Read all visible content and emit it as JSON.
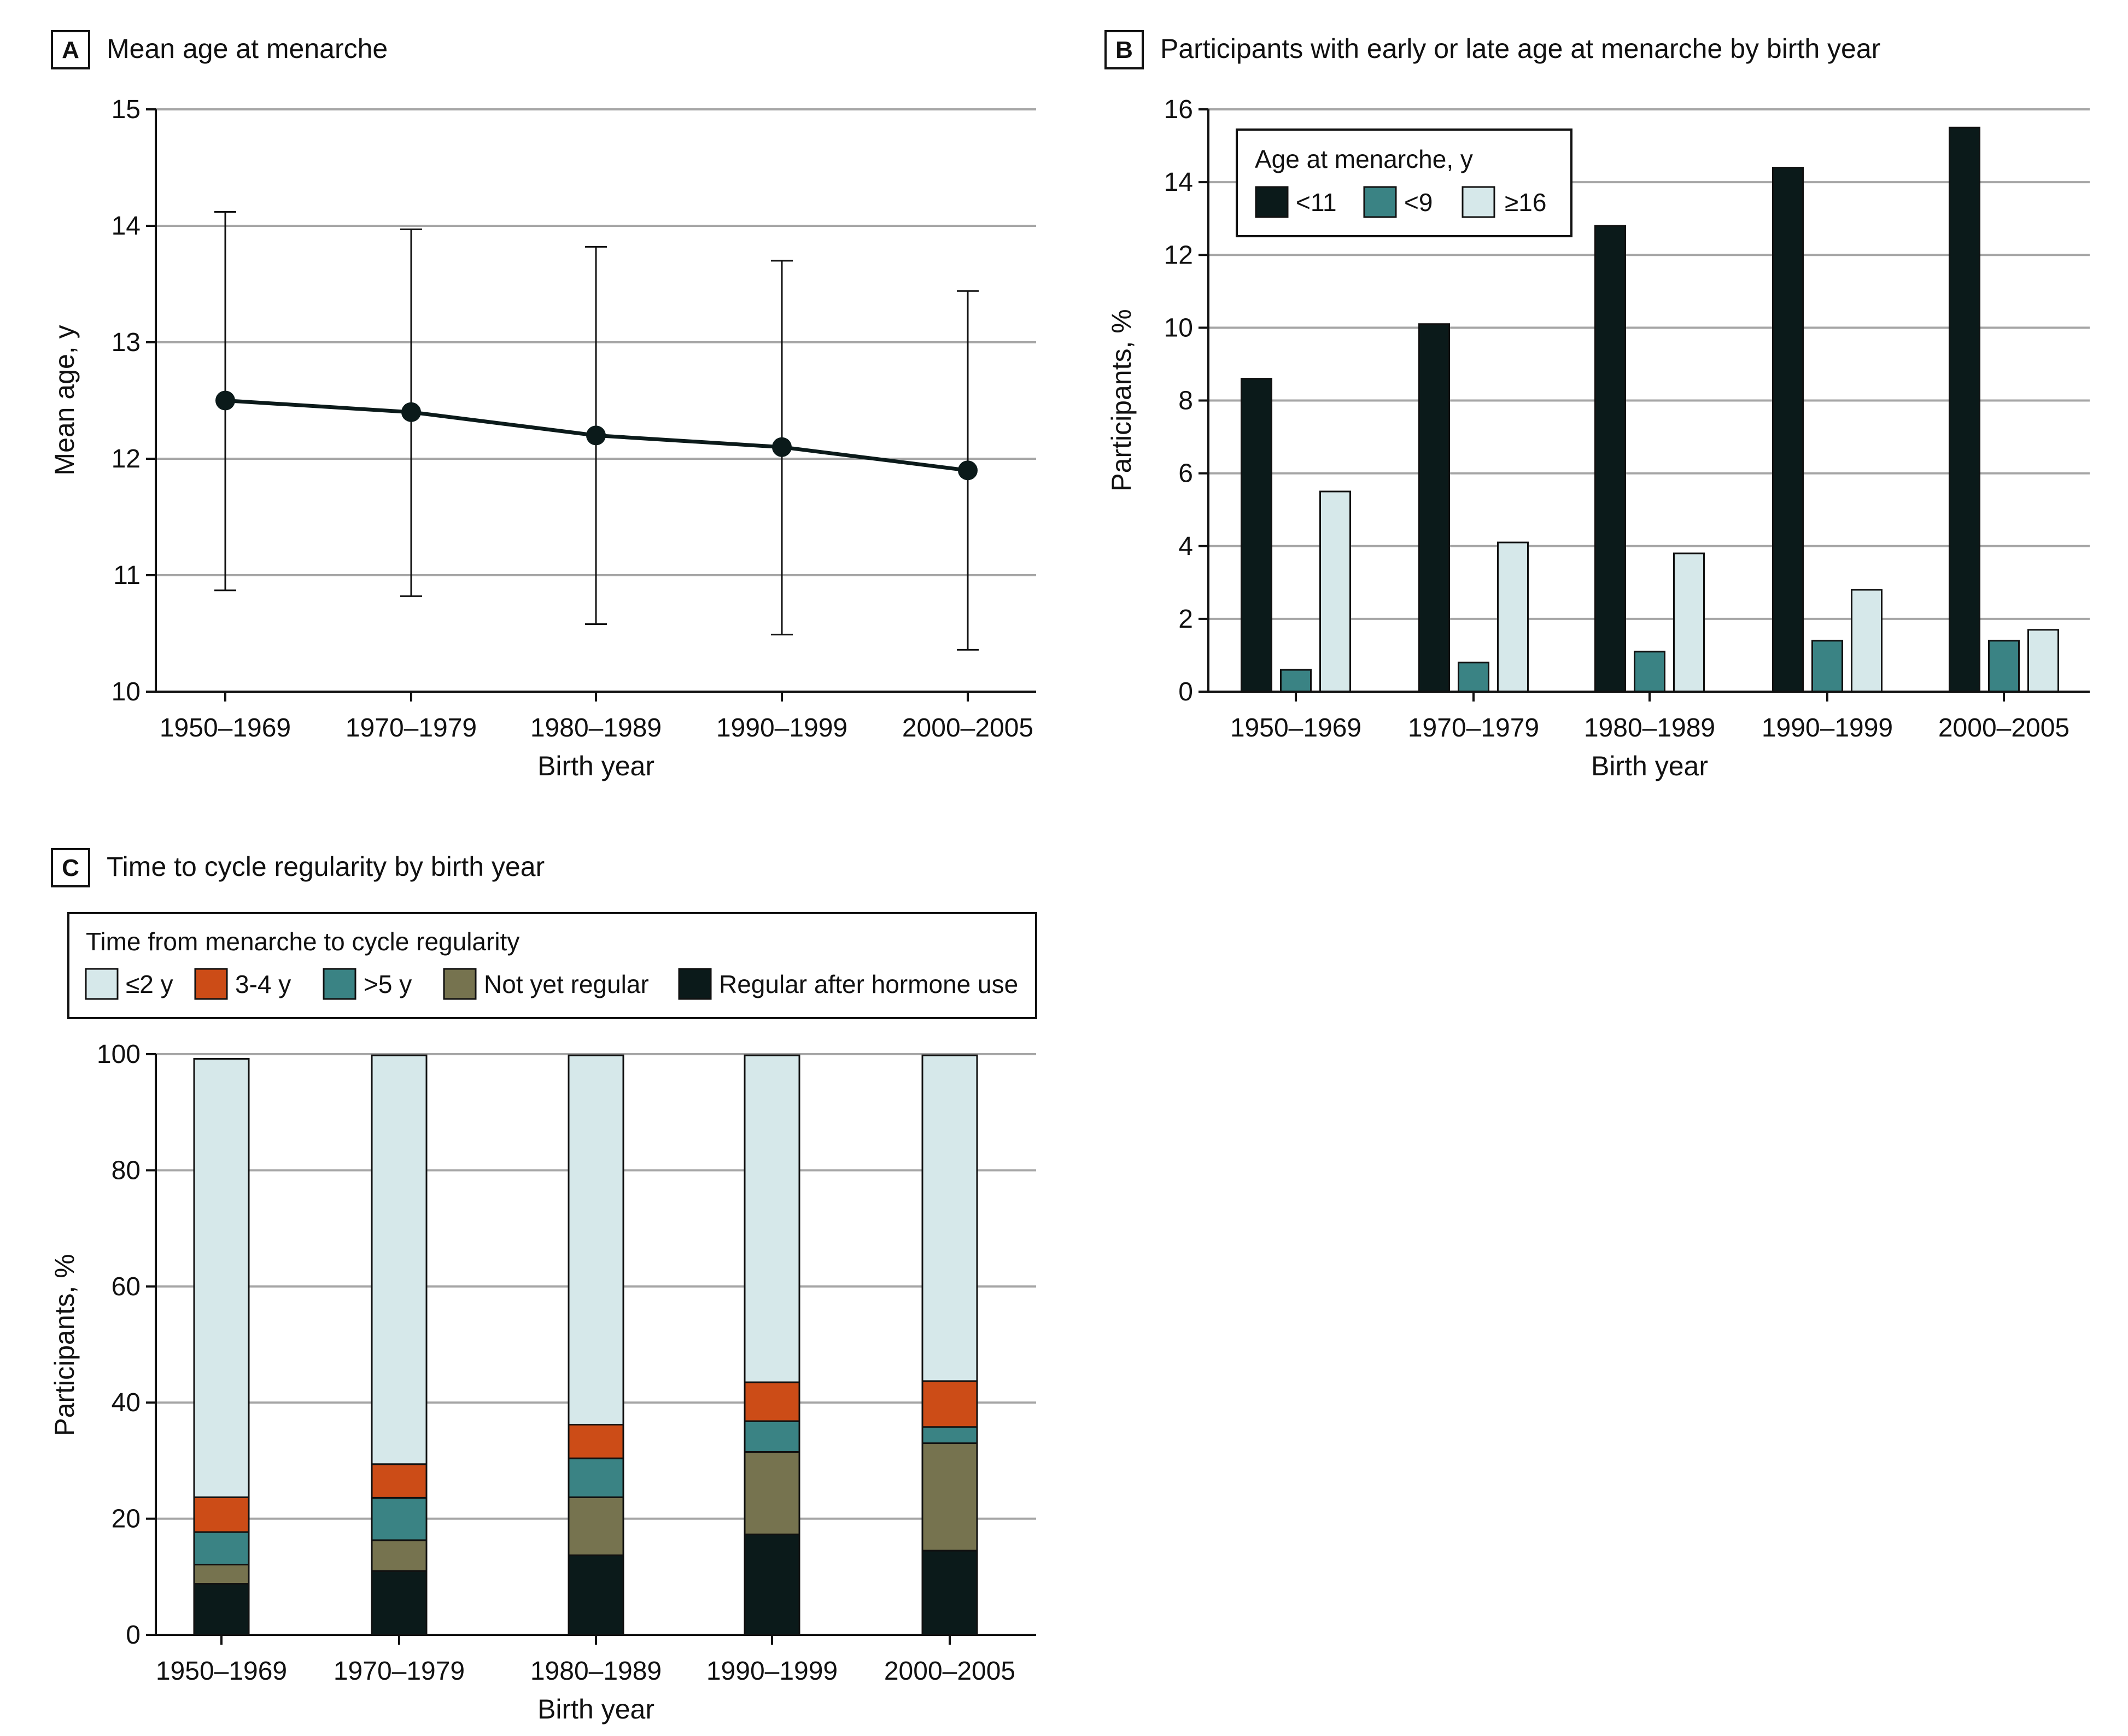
{
  "colors": {
    "early_lt11": "#0b1a1a",
    "early_lt9": "#3a8384",
    "late_ge16": "#d6e8ea",
    "le2y": "#d6e8ea",
    "y3to4": "#cc4c17",
    "gt5y": "#3a8384",
    "not_yet": "#76734f",
    "hormone": "#0b1a1a",
    "line": "#0b1a1a",
    "grid": "#a6a6a6"
  },
  "chart_data": [
    {
      "panel": "A",
      "type": "line",
      "title": "Mean age at menarche",
      "xlabel": "Birth year",
      "ylabel": "Mean age, y",
      "ylim": [
        10,
        15
      ],
      "yticks": [
        10,
        11,
        12,
        13,
        14,
        15
      ],
      "categories": [
        "1950–1969",
        "1970–1979",
        "1980–1989",
        "1990–1999",
        "2000–2005"
      ],
      "values": [
        12.5,
        12.4,
        12.2,
        12.1,
        11.9
      ],
      "error_low": [
        10.87,
        10.82,
        10.58,
        10.49,
        10.36
      ],
      "error_high": [
        14.12,
        13.97,
        13.82,
        13.7,
        13.44
      ],
      "grid": true
    },
    {
      "panel": "B",
      "type": "bar",
      "title": "Participants with early or late age at menarche by birth year",
      "xlabel": "Birth year",
      "ylabel": "Participants, %",
      "ylim": [
        0,
        16
      ],
      "yticks": [
        0,
        2,
        4,
        6,
        8,
        10,
        12,
        14,
        16
      ],
      "categories": [
        "1950–1969",
        "1970–1979",
        "1980–1989",
        "1990–1999",
        "2000–2005"
      ],
      "legend_title": "Age at menarche, y",
      "legend_position": "top-left",
      "series": [
        {
          "name": "<11",
          "color_key": "early_lt11",
          "values": [
            8.6,
            10.1,
            12.8,
            14.4,
            15.5
          ]
        },
        {
          "name": "<9",
          "color_key": "early_lt9",
          "values": [
            0.6,
            0.8,
            1.1,
            1.4,
            1.4
          ]
        },
        {
          "name": "≥16",
          "color_key": "late_ge16",
          "values": [
            5.5,
            4.1,
            3.8,
            2.8,
            1.7
          ]
        }
      ],
      "grid": true
    },
    {
      "panel": "C",
      "type": "bar",
      "stacked": true,
      "title": "Time to cycle regularity by birth year",
      "xlabel": "Birth year",
      "ylabel": "Participants, %",
      "ylim": [
        0,
        100
      ],
      "yticks": [
        0,
        20,
        40,
        60,
        80,
        100
      ],
      "categories": [
        "1950–1969",
        "1970–1979",
        "1980–1989",
        "1990–1999",
        "2000–2005"
      ],
      "legend_title": "Time from menarche to cycle regularity",
      "legend_position": "top",
      "legend_order": [
        "≤2 y",
        "3-4 y",
        ">5 y",
        "Not yet regular",
        "Regular after hormone use"
      ],
      "series": [
        {
          "name": "Regular after hormone use",
          "color_key": "hormone",
          "values": [
            8.8,
            11.0,
            13.7,
            17.3,
            14.5
          ]
        },
        {
          "name": "Not yet regular",
          "color_key": "not_yet",
          "values": [
            3.3,
            5.3,
            10.0,
            14.2,
            18.5
          ]
        },
        {
          "name": ">5 y",
          "color_key": "gt5y",
          "values": [
            5.6,
            7.3,
            6.7,
            5.3,
            2.8
          ]
        },
        {
          "name": "3-4 y",
          "color_key": "y3to4",
          "values": [
            6.0,
            5.8,
            5.8,
            6.7,
            7.9
          ]
        },
        {
          "name": "≤2 y",
          "color_key": "le2y",
          "values": [
            75.5,
            70.4,
            63.6,
            56.3,
            56.1
          ]
        }
      ],
      "grid": true
    }
  ]
}
